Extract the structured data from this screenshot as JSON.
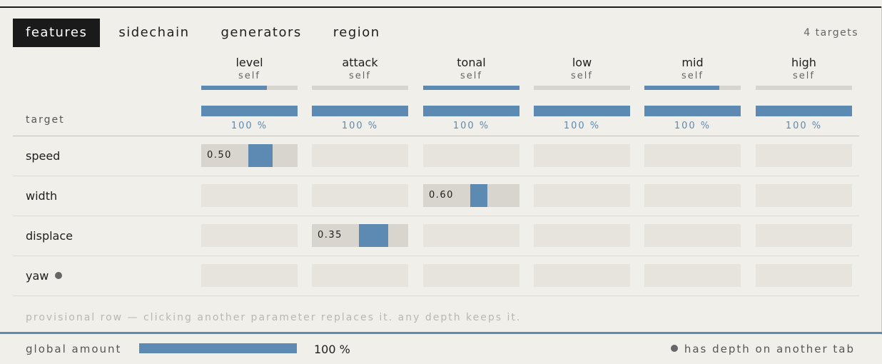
{
  "tabs": [
    {
      "label": "features",
      "active": true
    },
    {
      "label": "sidechain",
      "active": false
    },
    {
      "label": "generators",
      "active": false
    },
    {
      "label": "region",
      "active": false
    }
  ],
  "targets_count": "4 targets",
  "columns": [
    {
      "name": "level",
      "source": "self",
      "level": 0.68,
      "depth": 1.0,
      "depth_label": "100 %"
    },
    {
      "name": "attack",
      "source": "self",
      "level": 0.0,
      "depth": 1.0,
      "depth_label": "100 %"
    },
    {
      "name": "tonal",
      "source": "self",
      "level": 1.0,
      "depth": 1.0,
      "depth_label": "100 %"
    },
    {
      "name": "low",
      "source": "self",
      "level": 0.0,
      "depth": 1.0,
      "depth_label": "100 %"
    },
    {
      "name": "mid",
      "source": "self",
      "level": 0.78,
      "depth": 1.0,
      "depth_label": "100 %"
    },
    {
      "name": "high",
      "source": "self",
      "level": 0.0,
      "depth": 1.0,
      "depth_label": "100 %"
    }
  ],
  "target_header": "target",
  "rows": [
    {
      "label": "speed",
      "dot": false,
      "cells": [
        {
          "value": "0.50",
          "amount": 0.5
        },
        null,
        null,
        null,
        null,
        null
      ]
    },
    {
      "label": "width",
      "dot": false,
      "cells": [
        null,
        null,
        {
          "value": "0.60",
          "amount": 0.6
        },
        null,
        null,
        null
      ]
    },
    {
      "label": "displace",
      "dot": false,
      "cells": [
        null,
        {
          "value": "0.35",
          "amount": 0.35
        },
        null,
        null,
        null,
        null
      ]
    },
    {
      "label": "yaw",
      "dot": true,
      "cells": [
        null,
        null,
        null,
        null,
        null,
        null
      ]
    }
  ],
  "provisional_note": "provisional row — clicking another parameter replaces it. any depth keeps it.",
  "footer": {
    "global_label": "global amount",
    "global_amount": 1.0,
    "global_pct": "100 %",
    "legend": "has depth on another tab"
  },
  "colors": {
    "accent": "#5d8ab3",
    "track": "#d7d5cd",
    "cell": "#e6e4dd",
    "dark": "#1a1a1a"
  }
}
